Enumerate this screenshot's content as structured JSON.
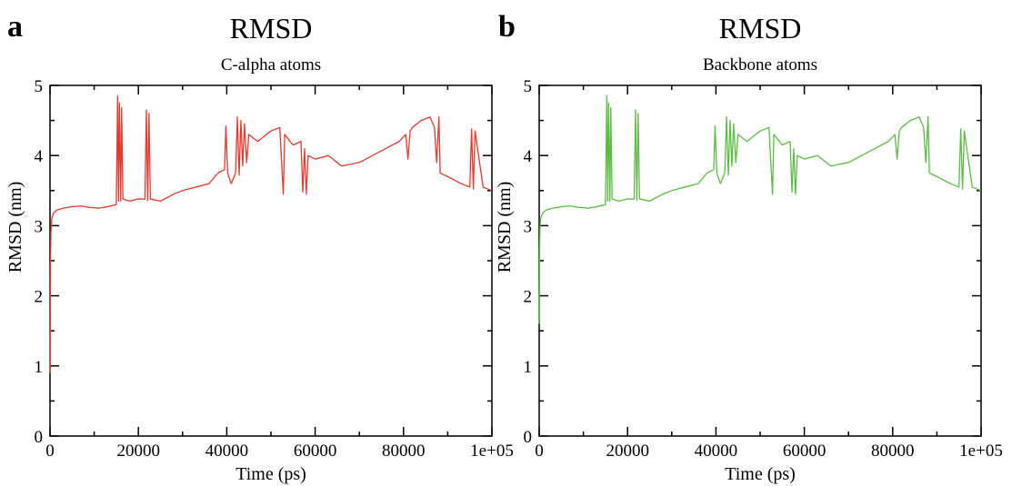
{
  "chart_data": [
    {
      "type": "line",
      "panel_label": "a",
      "title": "RMSD",
      "subtitle": "C-alpha atoms",
      "xlabel": "Time (ps)",
      "ylabel": "RMSD (nm)",
      "xlim": [
        0,
        100000
      ],
      "ylim": [
        0,
        5
      ],
      "x_ticks": [
        0,
        20000,
        40000,
        60000,
        80000,
        100000
      ],
      "x_tick_labels": [
        "0",
        "20000",
        "40000",
        "60000",
        "80000",
        "1e+05"
      ],
      "y_ticks": [
        0,
        1,
        2,
        3,
        4,
        5
      ],
      "y_tick_labels": [
        "0",
        "1",
        "2",
        "3",
        "4",
        "5"
      ],
      "grid": false,
      "color": "#e8382c",
      "series": [
        {
          "x": [
            0,
            100,
            200,
            400,
            800,
            1500,
            3000,
            5000,
            7000,
            9000,
            11000,
            13000,
            15000,
            15300,
            15500,
            15700,
            16000,
            16200,
            16500,
            18000,
            20000,
            21500,
            21800,
            22100,
            22400,
            22700,
            25000,
            28000,
            30000,
            33000,
            36000,
            38000,
            39500,
            39800,
            40200,
            41000,
            42000,
            42400,
            42800,
            43200,
            43600,
            44000,
            44500,
            45000,
            47000,
            50000,
            52000,
            52800,
            53100,
            55000,
            56800,
            57200,
            57600,
            58000,
            58400,
            60000,
            63000,
            66000,
            70000,
            73000,
            76000,
            79000,
            80500,
            81000,
            81500,
            82000,
            84000,
            86000,
            87000,
            87500,
            88000,
            88300,
            90000,
            93000,
            95000,
            95400,
            95800,
            96200,
            98000,
            100000
          ],
          "y": [
            0.9,
            2.4,
            2.9,
            3.1,
            3.18,
            3.22,
            3.25,
            3.27,
            3.28,
            3.26,
            3.25,
            3.27,
            3.3,
            4.85,
            3.35,
            4.75,
            3.35,
            4.68,
            3.38,
            3.35,
            3.38,
            3.38,
            4.65,
            3.36,
            4.6,
            3.38,
            3.35,
            3.45,
            3.5,
            3.55,
            3.6,
            3.75,
            3.8,
            4.42,
            3.75,
            3.6,
            3.75,
            4.55,
            3.72,
            4.5,
            3.85,
            4.45,
            3.9,
            4.3,
            4.2,
            4.35,
            4.4,
            3.45,
            4.3,
            4.15,
            4.2,
            3.48,
            4.1,
            3.45,
            4.0,
            3.95,
            4.0,
            3.85,
            3.9,
            4.0,
            4.1,
            4.2,
            4.3,
            3.95,
            4.35,
            4.4,
            4.5,
            4.55,
            4.4,
            3.9,
            4.55,
            3.75,
            3.7,
            3.6,
            3.55,
            4.38,
            3.52,
            4.35,
            3.55,
            3.5
          ]
        }
      ]
    },
    {
      "type": "line",
      "panel_label": "b",
      "title": "RMSD",
      "subtitle": "Backbone atoms",
      "xlabel": "Time (ps)",
      "ylabel": "RMSD (nm)",
      "xlim": [
        0,
        100000
      ],
      "ylim": [
        0,
        5
      ],
      "x_ticks": [
        0,
        20000,
        40000,
        60000,
        80000,
        100000
      ],
      "x_tick_labels": [
        "0",
        "20000",
        "40000",
        "60000",
        "80000",
        "1e+05"
      ],
      "y_ticks": [
        0,
        1,
        2,
        3,
        4,
        5
      ],
      "y_tick_labels": [
        "0",
        "1",
        "2",
        "3",
        "4",
        "5"
      ],
      "grid": false,
      "color": "#5bbd43",
      "series": [
        {
          "x": [
            0,
            100,
            200,
            400,
            800,
            1500,
            3000,
            5000,
            7000,
            9000,
            11000,
            13000,
            15000,
            15300,
            15500,
            15700,
            16000,
            16200,
            16500,
            18000,
            20000,
            21500,
            21800,
            22100,
            22400,
            22700,
            25000,
            28000,
            30000,
            33000,
            36000,
            38000,
            39500,
            39800,
            40200,
            41000,
            42000,
            42400,
            42800,
            43200,
            43600,
            44000,
            44500,
            45000,
            47000,
            50000,
            52000,
            52800,
            53100,
            55000,
            56800,
            57200,
            57600,
            58000,
            58400,
            60000,
            63000,
            66000,
            70000,
            73000,
            76000,
            79000,
            80500,
            81000,
            81500,
            82000,
            84000,
            86000,
            87000,
            87500,
            88000,
            88300,
            90000,
            93000,
            95000,
            95400,
            95800,
            96200,
            98000,
            100000
          ],
          "y": [
            1.6,
            2.7,
            3.0,
            3.12,
            3.18,
            3.22,
            3.25,
            3.27,
            3.28,
            3.26,
            3.25,
            3.27,
            3.3,
            4.85,
            3.35,
            4.75,
            3.35,
            4.68,
            3.38,
            3.35,
            3.38,
            3.38,
            4.65,
            3.36,
            4.6,
            3.38,
            3.35,
            3.45,
            3.5,
            3.55,
            3.6,
            3.75,
            3.8,
            4.42,
            3.75,
            3.6,
            3.75,
            4.55,
            3.72,
            4.5,
            3.85,
            4.45,
            3.9,
            4.3,
            4.2,
            4.35,
            4.4,
            3.45,
            4.3,
            4.15,
            4.2,
            3.48,
            4.1,
            3.45,
            4.0,
            3.95,
            4.0,
            3.85,
            3.9,
            4.0,
            4.1,
            4.2,
            4.3,
            3.95,
            4.35,
            4.4,
            4.5,
            4.55,
            4.4,
            3.9,
            4.55,
            3.75,
            3.7,
            3.6,
            3.55,
            4.38,
            3.52,
            4.35,
            3.55,
            3.5
          ]
        }
      ]
    }
  ]
}
